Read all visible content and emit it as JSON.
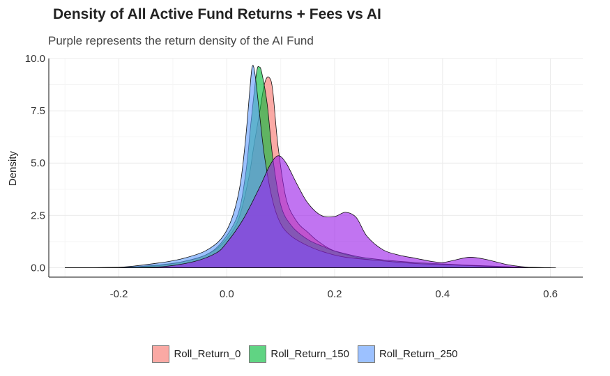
{
  "chart_data": {
    "type": "area",
    "title": "Density of All Active Fund Returns + Fees vs AI",
    "subtitle": "Purple represents the return density of the AI Fund",
    "xlabel": "",
    "ylabel": "Density",
    "xlim": [
      -0.33,
      0.66
    ],
    "ylim": [
      -0.45,
      10.0
    ],
    "x_ticks": [
      "-0.2",
      "0.0",
      "0.2",
      "0.4",
      "0.6"
    ],
    "x_tick_values": [
      -0.2,
      0.0,
      0.2,
      0.4,
      0.6
    ],
    "y_ticks": [
      "0.0",
      "2.5",
      "5.0",
      "7.5",
      "10.0"
    ],
    "y_tick_values": [
      0.0,
      2.5,
      5.0,
      7.5,
      10.0
    ],
    "grid": true,
    "legend_position": "bottom",
    "series": [
      {
        "name": "Roll_Return_0",
        "color": "#F8766D",
        "points": [
          [
            -0.3,
            0
          ],
          [
            -0.2,
            0.01
          ],
          [
            -0.12,
            0.12
          ],
          [
            -0.08,
            0.3
          ],
          [
            -0.04,
            0.6
          ],
          [
            -0.01,
            1.1
          ],
          [
            0.02,
            2.2
          ],
          [
            0.04,
            4.2
          ],
          [
            0.05,
            5.8
          ],
          [
            0.06,
            7.3
          ],
          [
            0.07,
            8.8
          ],
          [
            0.078,
            9.1
          ],
          [
            0.085,
            8.5
          ],
          [
            0.095,
            5.8
          ],
          [
            0.11,
            3.3
          ],
          [
            0.13,
            2.2
          ],
          [
            0.15,
            1.7
          ],
          [
            0.17,
            1.25
          ],
          [
            0.2,
            0.8
          ],
          [
            0.25,
            0.45
          ],
          [
            0.3,
            0.3
          ],
          [
            0.35,
            0.2
          ],
          [
            0.4,
            0.15
          ],
          [
            0.45,
            0.1
          ],
          [
            0.5,
            0.06
          ],
          [
            0.55,
            0.02
          ],
          [
            0.6,
            0
          ]
        ]
      },
      {
        "name": "Roll_Return_150",
        "color": "#00BA38",
        "points": [
          [
            -0.3,
            0
          ],
          [
            -0.2,
            0.01
          ],
          [
            -0.12,
            0.15
          ],
          [
            -0.08,
            0.3
          ],
          [
            -0.04,
            0.6
          ],
          [
            -0.01,
            1.2
          ],
          [
            0.02,
            2.5
          ],
          [
            0.035,
            4.5
          ],
          [
            0.045,
            7.0
          ],
          [
            0.055,
            9.3
          ],
          [
            0.06,
            9.6
          ],
          [
            0.065,
            9.3
          ],
          [
            0.075,
            7.8
          ],
          [
            0.085,
            5.3
          ],
          [
            0.1,
            3.0
          ],
          [
            0.12,
            2.0
          ],
          [
            0.15,
            1.35
          ],
          [
            0.18,
            1.0
          ],
          [
            0.2,
            0.8
          ],
          [
            0.25,
            0.5
          ],
          [
            0.3,
            0.35
          ],
          [
            0.35,
            0.25
          ],
          [
            0.4,
            0.18
          ],
          [
            0.45,
            0.12
          ],
          [
            0.5,
            0.07
          ],
          [
            0.55,
            0.02
          ],
          [
            0.6,
            0
          ]
        ]
      },
      {
        "name": "Roll_Return_250",
        "color": "#619CFF",
        "points": [
          [
            -0.3,
            0
          ],
          [
            -0.2,
            0.02
          ],
          [
            -0.12,
            0.25
          ],
          [
            -0.08,
            0.45
          ],
          [
            -0.04,
            0.8
          ],
          [
            -0.01,
            1.4
          ],
          [
            0.01,
            2.4
          ],
          [
            0.025,
            4.0
          ],
          [
            0.035,
            6.2
          ],
          [
            0.042,
            8.3
          ],
          [
            0.047,
            9.6
          ],
          [
            0.052,
            9.3
          ],
          [
            0.06,
            7.5
          ],
          [
            0.07,
            5.3
          ],
          [
            0.085,
            3.2
          ],
          [
            0.1,
            2.1
          ],
          [
            0.12,
            1.5
          ],
          [
            0.15,
            1.05
          ],
          [
            0.18,
            0.75
          ],
          [
            0.22,
            0.5
          ],
          [
            0.3,
            0.3
          ],
          [
            0.35,
            0.2
          ],
          [
            0.4,
            0.15
          ],
          [
            0.45,
            0.1
          ],
          [
            0.5,
            0.05
          ],
          [
            0.55,
            0.02
          ],
          [
            0.6,
            0
          ]
        ]
      },
      {
        "color": "#9B1FE8",
        "points": [
          [
            -0.3,
            0
          ],
          [
            -0.2,
            0
          ],
          [
            -0.12,
            0.05
          ],
          [
            -0.06,
            0.3
          ],
          [
            -0.02,
            0.7
          ],
          [
            0.0,
            1.2
          ],
          [
            0.03,
            2.3
          ],
          [
            0.06,
            3.8
          ],
          [
            0.08,
            4.9
          ],
          [
            0.095,
            5.35
          ],
          [
            0.11,
            5.0
          ],
          [
            0.13,
            4.0
          ],
          [
            0.15,
            3.1
          ],
          [
            0.175,
            2.5
          ],
          [
            0.2,
            2.45
          ],
          [
            0.22,
            2.65
          ],
          [
            0.24,
            2.4
          ],
          [
            0.26,
            1.5
          ],
          [
            0.29,
            0.85
          ],
          [
            0.32,
            0.6
          ],
          [
            0.35,
            0.45
          ],
          [
            0.38,
            0.3
          ],
          [
            0.4,
            0.25
          ],
          [
            0.42,
            0.35
          ],
          [
            0.45,
            0.5
          ],
          [
            0.48,
            0.4
          ],
          [
            0.52,
            0.15
          ],
          [
            0.56,
            0.02
          ],
          [
            0.61,
            0
          ]
        ]
      }
    ]
  }
}
